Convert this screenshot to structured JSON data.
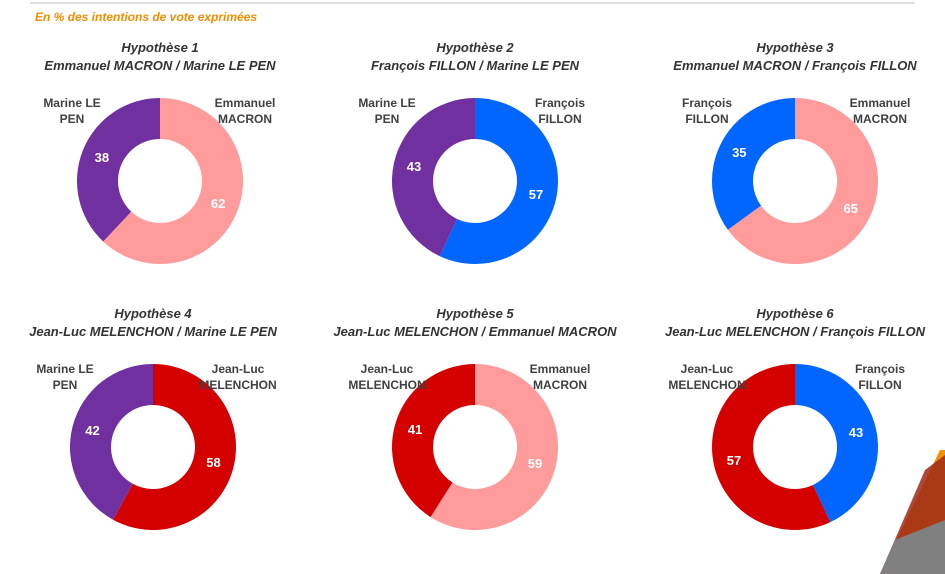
{
  "note": "En % des intentions de vote exprimées",
  "chart_data": [
    {
      "type": "donut",
      "title": "Hypothèse 1",
      "subtitle": "Emmanuel MACRON / Marine LE PEN",
      "categories": [
        "Emmanuel MACRON",
        "Marine LE PEN"
      ],
      "values": [
        62,
        38
      ],
      "colors": [
        "#ff9b9b",
        "#7030a0"
      ]
    },
    {
      "type": "donut",
      "title": "Hypothèse 2",
      "subtitle": "François FILLON / Marine LE PEN",
      "categories": [
        "François FILLON",
        "Marine LE PEN"
      ],
      "values": [
        57,
        43
      ],
      "colors": [
        "#0066ff",
        "#7030a0"
      ]
    },
    {
      "type": "donut",
      "title": "Hypothèse 3",
      "subtitle": "Emmanuel MACRON / François FILLON",
      "categories": [
        "Emmanuel MACRON",
        "François FILLON"
      ],
      "values": [
        65,
        35
      ],
      "colors": [
        "#ff9b9b",
        "#0066ff"
      ]
    },
    {
      "type": "donut",
      "title": "Hypothèse 4",
      "subtitle": "Jean-Luc MELENCHON / Marine LE PEN",
      "categories": [
        "Jean-Luc MELENCHON",
        "Marine LE PEN"
      ],
      "values": [
        58,
        42
      ],
      "colors": [
        "#d40000",
        "#7030a0"
      ]
    },
    {
      "type": "donut",
      "title": "Hypothèse 5",
      "subtitle": "Jean-Luc MELENCHON / Emmanuel MACRON",
      "categories": [
        "Emmanuel MACRON",
        "Jean-Luc MELENCHON"
      ],
      "values": [
        59,
        41
      ],
      "colors": [
        "#ff9b9b",
        "#d40000"
      ]
    },
    {
      "type": "donut",
      "title": "Hypothèse 6",
      "subtitle": "Jean-Luc MELENCHON / François FILLON",
      "categories": [
        "François FILLON",
        "Jean-Luc MELENCHON"
      ],
      "values": [
        43,
        57
      ],
      "colors": [
        "#0066ff",
        "#d40000"
      ]
    }
  ]
}
